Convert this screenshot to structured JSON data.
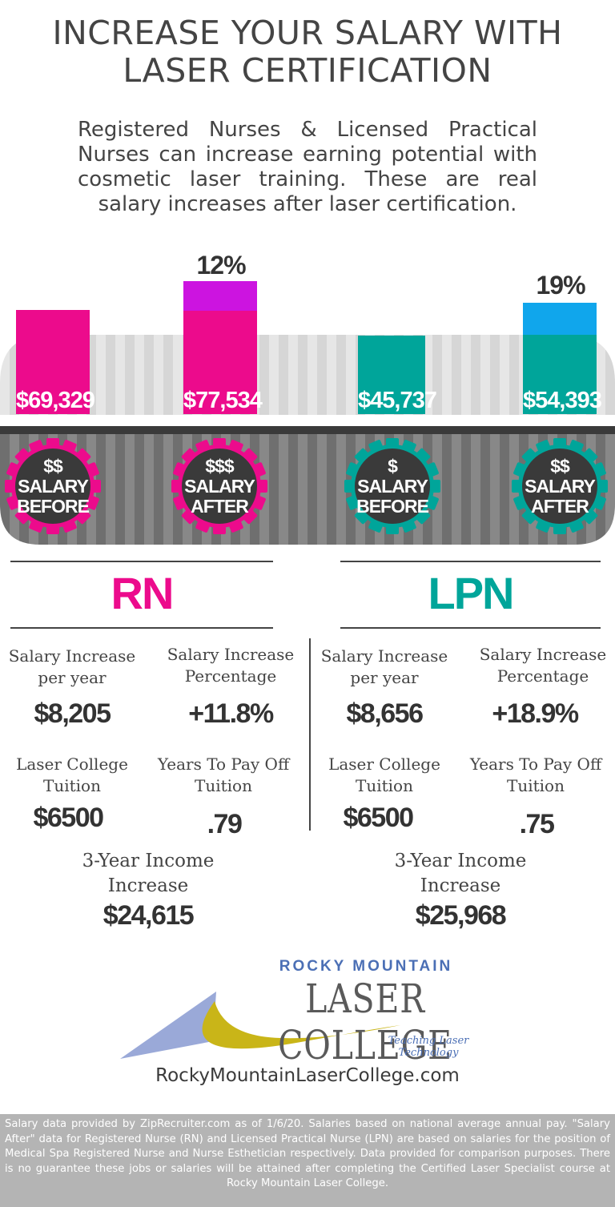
{
  "title_line1": "INCREASE YOUR SALARY WITH",
  "title_line2": "LASER CERTIFICATION",
  "intro": "Registered Nurses & Licensed Practical Nurses can increase earning potential with cosmetic laser training. These are real salary increases after laser certification.",
  "colors": {
    "rn": "#ec0b8c",
    "rn_increase": "#cc14e0",
    "lpn": "#00a59a",
    "lpn_increase": "#10a6ec"
  },
  "bars": [
    {
      "value": "$69,329",
      "symbol": "$$",
      "line1": "SALARY",
      "line2": "BEFORE"
    },
    {
      "value": "$77,534",
      "symbol": "$$$",
      "line1": "SALARY",
      "line2": "AFTER",
      "increase": "12%"
    },
    {
      "value": "$45,737",
      "symbol": "$",
      "line1": "SALARY",
      "line2": "BEFORE"
    },
    {
      "value": "$54,393",
      "symbol": "$$",
      "line1": "SALARY",
      "line2": "AFTER",
      "increase": "19%"
    }
  ],
  "rn": {
    "heading": "RN",
    "increase_label": "Salary Increase per year",
    "increase_value": "$8,205",
    "percent_label": "Salary Increase Percentage",
    "percent_value": "+11.8%",
    "tuition_label": "Laser College Tuition",
    "tuition_value": "$6500",
    "payoff_label": "Years To Pay Off Tuition",
    "payoff_value": ".79",
    "three_year_label": "3-Year Income Increase",
    "three_year_value": "$24,615"
  },
  "lpn": {
    "heading": "LPN",
    "increase_label": "Salary Increase per year",
    "increase_value": "$8,656",
    "percent_label": "Salary Increase Percentage",
    "percent_value": "+18.9%",
    "tuition_label": "Laser College Tuition",
    "tuition_value": "$6500",
    "payoff_label": "Years To Pay Off Tuition",
    "payoff_value": ".75",
    "three_year_label": "3-Year Income Increase",
    "three_year_value": "$25,968"
  },
  "logo": {
    "top": "ROCKY MOUNTAIN",
    "main": "LASER COLLEGE",
    "tagline": "Teaching Laser Technology",
    "colors": {
      "blue": "#4b6fb5",
      "gold": "#c9b518",
      "gray": "#5a5a5a"
    }
  },
  "website": "RockyMountainLaserCollege.com",
  "footer": "Salary data provided by ZipRecruiter.com as of 1/6/20. Salaries based on national average annual pay. \"Salary After\" data for Registered Nurse (RN) and Licensed Practical Nurse (LPN) are based on salaries for the position of Medical Spa Registered Nurse and Nurse Esthetician respectively. Data provided for comparison purposes. There is no guarantee these jobs or salaries will be attained after completing the Certified Laser Specialist course at Rocky Mountain Laser College."
}
